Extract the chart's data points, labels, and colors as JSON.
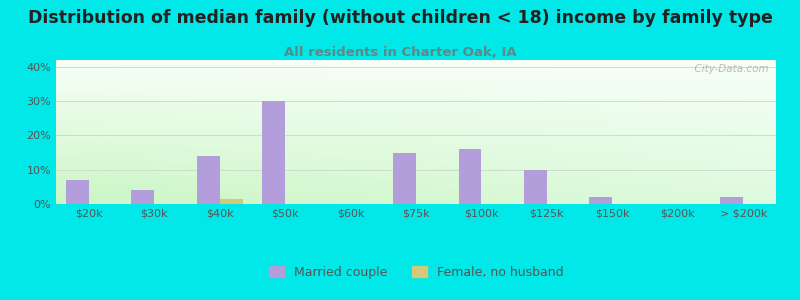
{
  "title": "Distribution of median family (without children < 18) income by family type",
  "subtitle": "All residents in Charter Oak, IA",
  "categories": [
    "$20k",
    "$30k",
    "$40k",
    "$50k",
    "$60k",
    "$75k",
    "$100k",
    "$125k",
    "$150k",
    "$200k",
    "> $200k"
  ],
  "married_couple": [
    7,
    4,
    14,
    30,
    0,
    15,
    16,
    10,
    2,
    0,
    2
  ],
  "female_no_husband": [
    0,
    0,
    1.5,
    0,
    0,
    0,
    0,
    0,
    0,
    0,
    0
  ],
  "married_color": "#b39ddb",
  "female_color": "#d4c97a",
  "background_outer": "#00e8e8",
  "ylim": [
    0,
    42
  ],
  "bar_width": 0.35,
  "watermark": "  City-Data.com",
  "title_fontsize": 12.5,
  "subtitle_fontsize": 9.5,
  "tick_fontsize": 8,
  "legend_fontsize": 9,
  "grid_color": "#ccddcc",
  "subtitle_color": "#5a8a8a",
  "title_color": "#222222"
}
